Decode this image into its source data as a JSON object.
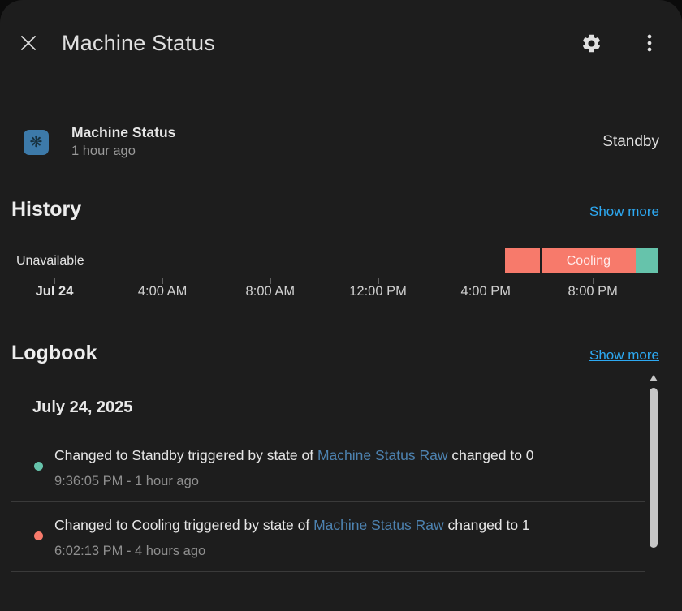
{
  "dialog": {
    "title": "Machine Status"
  },
  "colors": {
    "dialog_bg": "#1d1d1d",
    "accent_link": "#2da9f2",
    "entity_link": "#4d82b0",
    "cooling": "#f77a6b",
    "standby": "#66c3ab",
    "icon_bg": "#3d7aa9"
  },
  "icons": {
    "close": "close-x",
    "settings": "gear",
    "more": "kebab-vertical-dots",
    "entity": "❋"
  },
  "entity": {
    "name": "Machine Status",
    "last_changed": "1 hour ago",
    "state": "Standby"
  },
  "history": {
    "heading": "History",
    "show_more": "Show more",
    "timeline": {
      "segments": [
        {
          "state": "unavailable",
          "label": "Unavailable",
          "color": "transparent",
          "text_color": "#e2e2e2",
          "left_pct": 0,
          "width_pct": 75.9,
          "align": "left"
        },
        {
          "state": "cooling",
          "label": "",
          "color": "#f77a6b",
          "text_color": "#ffeceb",
          "left_pct": 76.2,
          "width_pct": 5.4,
          "align": "center"
        },
        {
          "state": "cooling",
          "label": "Cooling",
          "color": "#f77a6b",
          "text_color": "#ffeceb",
          "left_pct": 81.6,
          "width_pct": 15.0,
          "align": "center",
          "divided": true
        },
        {
          "state": "standby",
          "label": "",
          "color": "#66c3ab",
          "text_color": "#ffffff",
          "left_pct": 96.6,
          "width_pct": 3.4,
          "align": "center"
        }
      ],
      "axis_ticks": [
        {
          "label": "Jul 24",
          "pct": 5.95,
          "bold": true
        },
        {
          "label": "4:00 AM",
          "pct": 22.8,
          "bold": false
        },
        {
          "label": "8:00 AM",
          "pct": 39.6,
          "bold": false
        },
        {
          "label": "12:00 PM",
          "pct": 56.4,
          "bold": false
        },
        {
          "label": "4:00 PM",
          "pct": 73.2,
          "bold": false
        },
        {
          "label": "8:00 PM",
          "pct": 89.9,
          "bold": false
        }
      ]
    }
  },
  "logbook": {
    "heading": "Logbook",
    "show_more": "Show more",
    "date_header": "July 24, 2025",
    "entries": [
      {
        "dot_color": "#66c3ab",
        "text_before": "Changed to Standby triggered by state of ",
        "link_text": "Machine Status Raw",
        "text_after": " changed to 0",
        "time": "9:36:05 PM - 1 hour ago"
      },
      {
        "dot_color": "#f77a6b",
        "text_before": "Changed to Cooling triggered by state of ",
        "link_text": "Machine Status Raw",
        "text_after": " changed to 1",
        "time": "6:02:13 PM - 4 hours ago"
      }
    ]
  }
}
